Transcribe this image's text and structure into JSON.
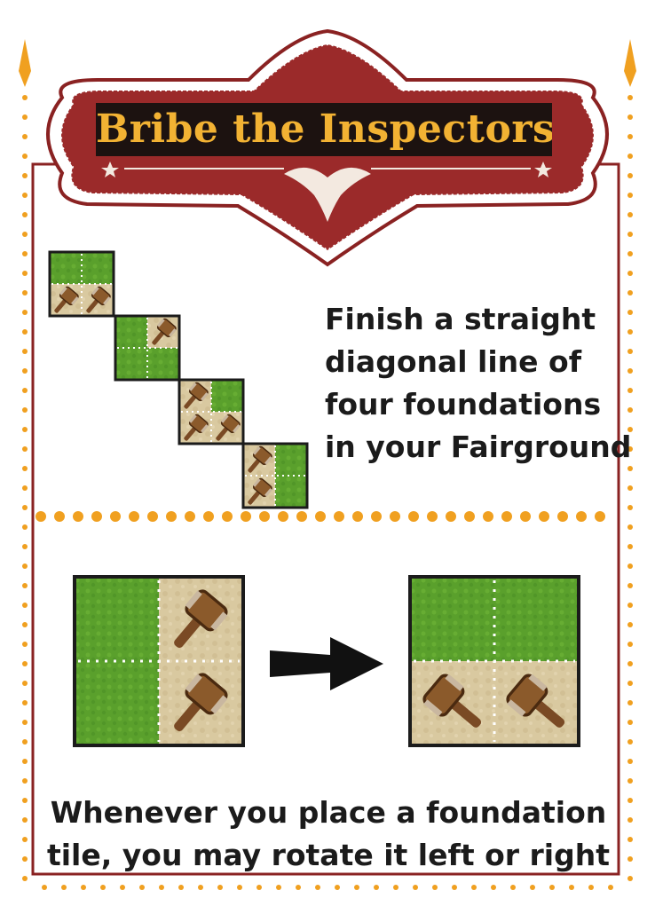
{
  "card": {
    "title": "Bribe the Inspectors",
    "objective_lines": [
      "Finish a straight",
      "diagonal line of",
      "four foundations",
      "in your Fairground"
    ],
    "rule_lines": [
      "Whenever you place a foundation",
      "tile, you may rotate it left or right"
    ]
  },
  "colors": {
    "banner_red": "#9b2a2a",
    "border_red": "#8a2222",
    "dot_orange": "#f0a020",
    "title_gold": "#f2b233",
    "grass": "#5aa02c",
    "sand": "#d9c9a0"
  },
  "icons": {
    "mallet": "mallet-icon",
    "arrow": "arrow-right-icon",
    "star": "star-icon"
  }
}
